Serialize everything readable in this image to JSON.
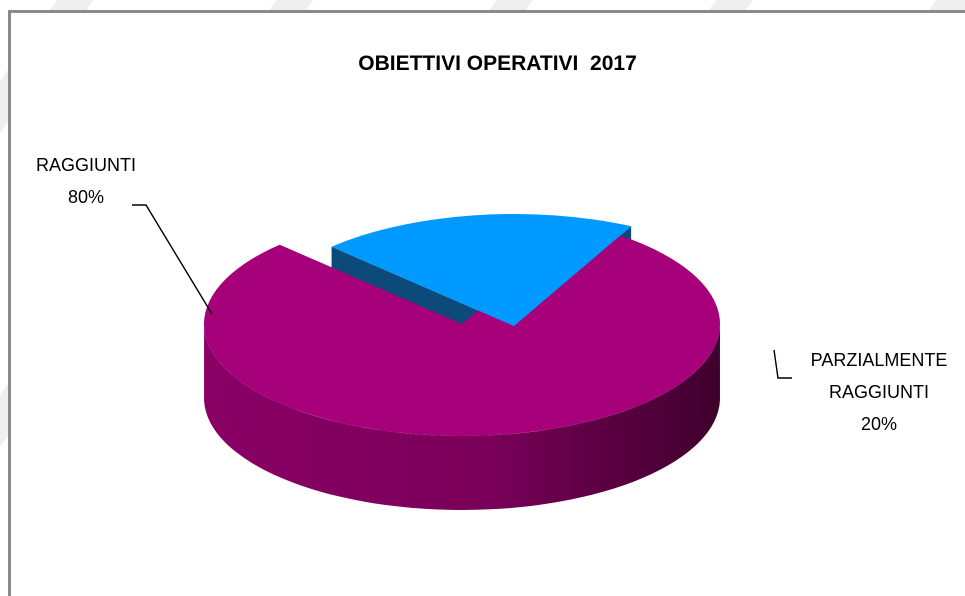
{
  "chart_data": {
    "type": "pie",
    "title": "OBIETTIVI OPERATIVI  2017",
    "categories": [
      "RAGGIUNTI",
      "PARZIALMENTE RAGGIUNTI"
    ],
    "values": [
      80,
      20
    ],
    "labels": [
      {
        "lines": [
          "RAGGIUNTI",
          "80%"
        ]
      },
      {
        "lines": [
          "PARZIALMENTE",
          "RAGGIUNTI",
          "20%"
        ]
      }
    ],
    "colors": {
      "top": [
        "#a6007a",
        "#0099ff"
      ],
      "side": [
        "#6e0050",
        "#0c4a7a"
      ]
    },
    "style": "3d-exploded"
  }
}
